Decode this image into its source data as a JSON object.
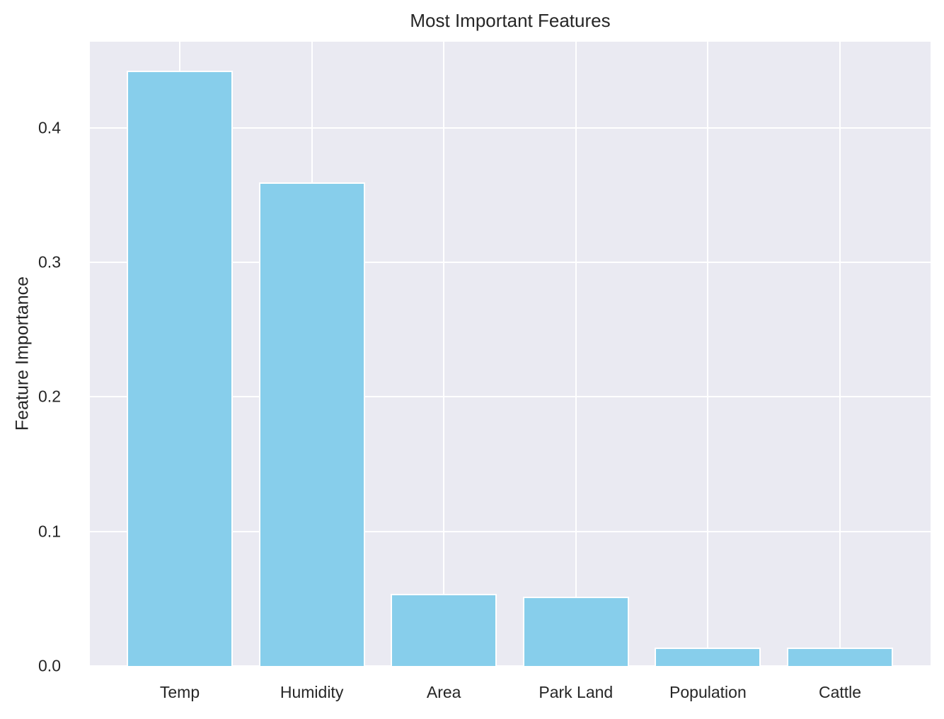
{
  "chart_data": {
    "type": "bar",
    "title": "Most Important Features",
    "xlabel": "",
    "ylabel": "Feature Importance",
    "categories": [
      "Temp",
      "Humidity",
      "Area",
      "Park Land",
      "Population",
      "Cattle"
    ],
    "values": [
      0.442,
      0.359,
      0.053,
      0.051,
      0.013,
      0.013
    ],
    "ylim": [
      0,
      0.464
    ],
    "yticks": [
      0.0,
      0.1,
      0.2,
      0.3,
      0.4
    ],
    "ytick_labels": [
      "0.0",
      "0.1",
      "0.2",
      "0.3",
      "0.4"
    ],
    "grid": true,
    "legend": null,
    "bar_color": "#87ceeb",
    "background_color": "#eaeaf2"
  }
}
